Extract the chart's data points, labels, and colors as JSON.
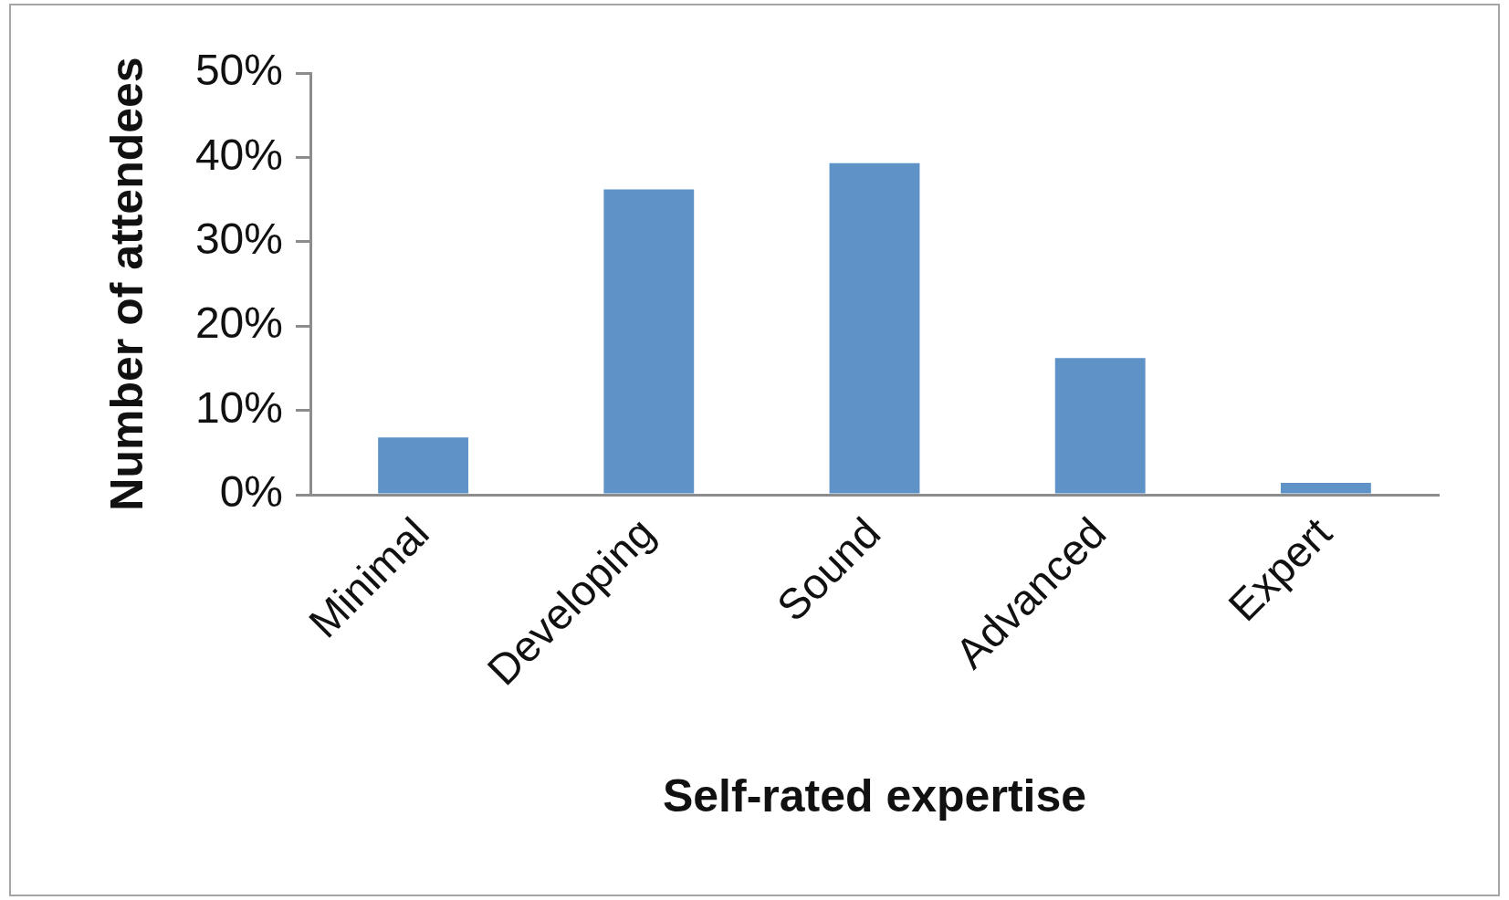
{
  "chart_data": {
    "type": "bar",
    "xlabel": "Self-rated expertise",
    "ylabel": "Number of attendees",
    "categories": [
      "Minimal",
      "Developing",
      "Sound",
      "Advanced",
      "Expert"
    ],
    "values": [
      6.8,
      36.2,
      39.3,
      16.2,
      1.4
    ],
    "color": "#5f93c8",
    "ylim": [
      0,
      50
    ],
    "yticks": [
      {
        "value": 0,
        "label": "0%"
      },
      {
        "value": 10,
        "label": "10%"
      },
      {
        "value": 20,
        "label": "20%"
      },
      {
        "value": 30,
        "label": "30%"
      },
      {
        "value": 40,
        "label": "40%"
      },
      {
        "value": 50,
        "label": "50%"
      }
    ]
  }
}
